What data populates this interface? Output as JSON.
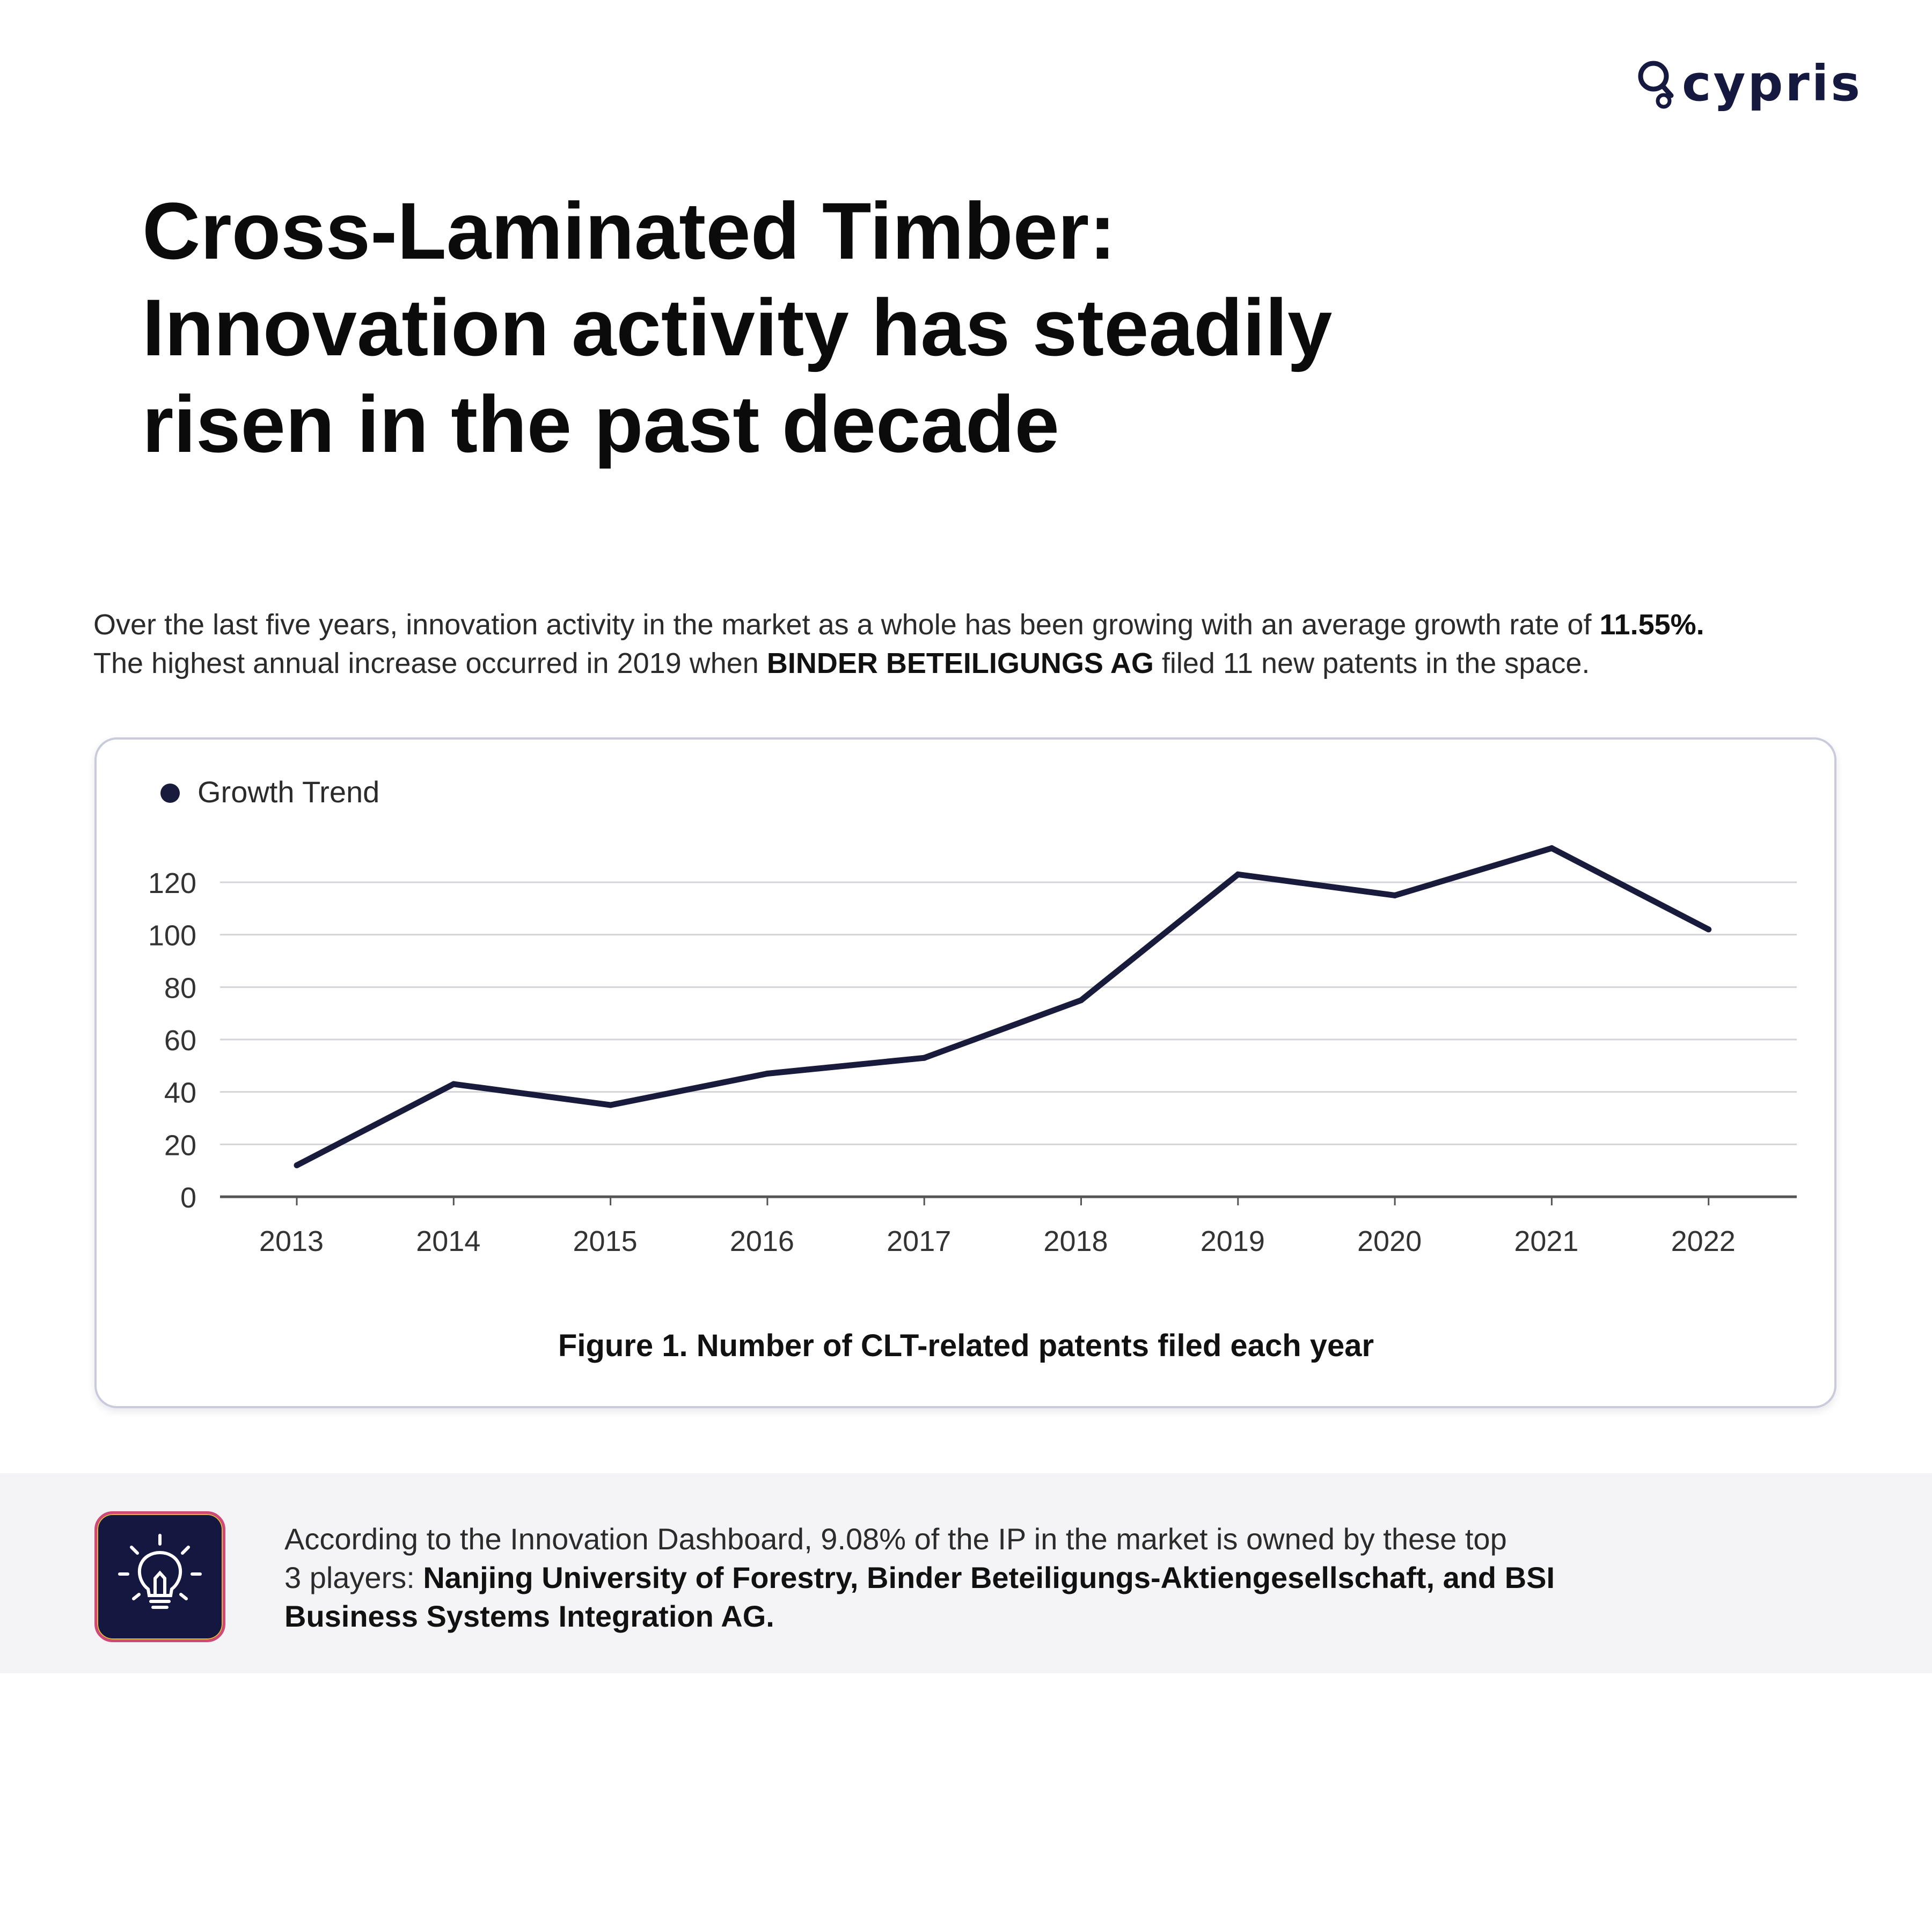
{
  "brand": {
    "name": "cypris",
    "logo_icon": "magnifier-people-icon",
    "color": "#15183f"
  },
  "title_lines": [
    "Cross-Laminated Timber:",
    "Innovation activity has steadily",
    "risen in the past decade"
  ],
  "intro": {
    "l1_text": "Over the last five years, innovation activity in the market as a whole has been growing with an average growth rate of ",
    "l1_bold": "11.55%.",
    "l2_pre": "The highest annual increase occurred in 2019 when ",
    "l2_bold": "BINDER BETEILIGUNGS AG",
    "l2_post": " filed 11 new patents in the space."
  },
  "chart_data": {
    "type": "line",
    "title": "Figure 1. Number of CLT-related patents filed each year",
    "xlabel": "",
    "ylabel": "",
    "categories": [
      "2013",
      "2014",
      "2015",
      "2016",
      "2017",
      "2018",
      "2019",
      "2020",
      "2021",
      "2022"
    ],
    "series": [
      {
        "name": "Growth Trend",
        "color": "#191b3c",
        "values": [
          12,
          43,
          35,
          47,
          53,
          75,
          123,
          115,
          133,
          102
        ]
      }
    ],
    "ylim": [
      0,
      120
    ],
    "yticks": [
      0,
      20,
      40,
      60,
      80,
      100,
      120
    ],
    "grid": true,
    "legend_position": "top-left"
  },
  "callout": {
    "icon": "lightbulb-idea-icon",
    "l1": "According to the Innovation Dashboard, 9.08% of the IP in the market is owned by these top",
    "l2_pre": "3 players: ",
    "l2_bold": "Nanjing University of Forestry, Binder Beteiligungs-Aktiengesellschaft, and BSI",
    "l3_bold": "Business Systems Integration AG."
  }
}
